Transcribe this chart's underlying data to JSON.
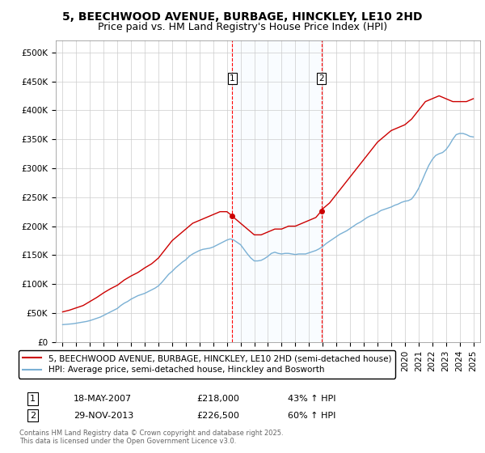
{
  "title": "5, BEECHWOOD AVENUE, BURBAGE, HINCKLEY, LE10 2HD",
  "subtitle": "Price paid vs. HM Land Registry's House Price Index (HPI)",
  "ylabel_ticks": [
    "£0",
    "£50K",
    "£100K",
    "£150K",
    "£200K",
    "£250K",
    "£300K",
    "£350K",
    "£400K",
    "£450K",
    "£500K"
  ],
  "ytick_values": [
    0,
    50000,
    100000,
    150000,
    200000,
    250000,
    300000,
    350000,
    400000,
    450000,
    500000
  ],
  "ylim": [
    0,
    520000
  ],
  "xlim_start": 1994.5,
  "xlim_end": 2025.5,
  "xticks": [
    1995,
    1996,
    1997,
    1998,
    1999,
    2000,
    2001,
    2002,
    2003,
    2004,
    2005,
    2006,
    2007,
    2008,
    2009,
    2010,
    2011,
    2012,
    2013,
    2014,
    2015,
    2016,
    2017,
    2018,
    2019,
    2020,
    2021,
    2022,
    2023,
    2024,
    2025
  ],
  "line1_color": "#cc0000",
  "line2_color": "#7ab0d4",
  "line1_label": "5, BEECHWOOD AVENUE, BURBAGE, HINCKLEY, LE10 2HD (semi-detached house)",
  "line2_label": "HPI: Average price, semi-detached house, Hinckley and Bosworth",
  "sale1_date": 2007.38,
  "sale1_price": 218000,
  "sale2_date": 2013.91,
  "sale2_price": 226500,
  "annotation1_label": "1",
  "annotation2_label": "2",
  "table_row1": [
    "1",
    "18-MAY-2007",
    "£218,000",
    "43% ↑ HPI"
  ],
  "table_row2": [
    "2",
    "29-NOV-2013",
    "£226,500",
    "60% ↑ HPI"
  ],
  "footer": "Contains HM Land Registry data © Crown copyright and database right 2025.\nThis data is licensed under the Open Government Licence v3.0.",
  "bg_color": "#ffffff",
  "grid_color": "#cccccc",
  "shade_color": "#ddeeff",
  "title_fontsize": 10,
  "subtitle_fontsize": 9,
  "tick_fontsize": 7.5,
  "hpi_data_x": [
    1995.0,
    1995.25,
    1995.5,
    1995.75,
    1996.0,
    1996.25,
    1996.5,
    1996.75,
    1997.0,
    1997.25,
    1997.5,
    1997.75,
    1998.0,
    1998.25,
    1998.5,
    1998.75,
    1999.0,
    1999.25,
    1999.5,
    1999.75,
    2000.0,
    2000.25,
    2000.5,
    2000.75,
    2001.0,
    2001.25,
    2001.5,
    2001.75,
    2002.0,
    2002.25,
    2002.5,
    2002.75,
    2003.0,
    2003.25,
    2003.5,
    2003.75,
    2004.0,
    2004.25,
    2004.5,
    2004.75,
    2005.0,
    2005.25,
    2005.5,
    2005.75,
    2006.0,
    2006.25,
    2006.5,
    2006.75,
    2007.0,
    2007.25,
    2007.5,
    2007.75,
    2008.0,
    2008.25,
    2008.5,
    2008.75,
    2009.0,
    2009.25,
    2009.5,
    2009.75,
    2010.0,
    2010.25,
    2010.5,
    2010.75,
    2011.0,
    2011.25,
    2011.5,
    2011.75,
    2012.0,
    2012.25,
    2012.5,
    2012.75,
    2013.0,
    2013.25,
    2013.5,
    2013.75,
    2014.0,
    2014.25,
    2014.5,
    2014.75,
    2015.0,
    2015.25,
    2015.5,
    2015.75,
    2016.0,
    2016.25,
    2016.5,
    2016.75,
    2017.0,
    2017.25,
    2017.5,
    2017.75,
    2018.0,
    2018.25,
    2018.5,
    2018.75,
    2019.0,
    2019.25,
    2019.5,
    2019.75,
    2020.0,
    2020.25,
    2020.5,
    2020.75,
    2021.0,
    2021.25,
    2021.5,
    2021.75,
    2022.0,
    2022.25,
    2022.5,
    2022.75,
    2023.0,
    2023.25,
    2023.5,
    2023.75,
    2024.0,
    2024.25,
    2024.5,
    2024.75,
    2025.0
  ],
  "hpi_data_y": [
    30000,
    30500,
    31000,
    31500,
    32500,
    33500,
    34500,
    35500,
    37000,
    39000,
    41000,
    43000,
    46000,
    49000,
    52000,
    55000,
    58000,
    63000,
    67000,
    70000,
    74000,
    77000,
    80000,
    82000,
    84000,
    87000,
    90000,
    93000,
    97000,
    103000,
    110000,
    117000,
    122000,
    128000,
    133000,
    138000,
    142000,
    148000,
    152000,
    155000,
    158000,
    160000,
    161000,
    162000,
    164000,
    167000,
    170000,
    173000,
    176000,
    178000,
    176000,
    172000,
    168000,
    160000,
    152000,
    145000,
    140000,
    140000,
    141000,
    144000,
    148000,
    153000,
    155000,
    153000,
    152000,
    153000,
    153000,
    152000,
    151000,
    152000,
    152000,
    152000,
    154000,
    156000,
    158000,
    161000,
    165000,
    170000,
    174000,
    178000,
    182000,
    186000,
    189000,
    192000,
    196000,
    200000,
    204000,
    207000,
    211000,
    215000,
    218000,
    220000,
    223000,
    227000,
    229000,
    231000,
    233000,
    236000,
    238000,
    241000,
    243000,
    244000,
    247000,
    255000,
    265000,
    278000,
    292000,
    305000,
    315000,
    322000,
    325000,
    327000,
    332000,
    340000,
    350000,
    358000,
    360000,
    360000,
    358000,
    355000,
    354000
  ],
  "price_line_x": [
    1995.0,
    1995.5,
    1996.0,
    1996.5,
    1997.0,
    1997.5,
    1998.0,
    1998.5,
    1999.0,
    1999.5,
    2000.0,
    2000.5,
    2001.0,
    2001.5,
    2002.0,
    2002.5,
    2003.0,
    2003.5,
    2004.0,
    2004.5,
    2005.0,
    2005.5,
    2006.0,
    2006.5,
    2007.0,
    2007.38,
    2007.5,
    2008.0,
    2008.5,
    2009.0,
    2009.5,
    2010.0,
    2010.5,
    2011.0,
    2011.5,
    2012.0,
    2012.5,
    2013.0,
    2013.5,
    2013.91,
    2014.0,
    2014.5,
    2015.0,
    2015.5,
    2016.0,
    2016.5,
    2017.0,
    2017.5,
    2018.0,
    2018.5,
    2019.0,
    2019.5,
    2020.0,
    2020.5,
    2021.0,
    2021.5,
    2022.0,
    2022.5,
    2023.0,
    2023.5,
    2024.0,
    2024.5,
    2025.0
  ],
  "price_line_y": [
    52000,
    55000,
    59000,
    63000,
    70000,
    77000,
    85000,
    92000,
    98000,
    107000,
    114000,
    120000,
    128000,
    135000,
    145000,
    160000,
    175000,
    185000,
    195000,
    205000,
    210000,
    215000,
    220000,
    225000,
    225000,
    218000,
    215000,
    205000,
    195000,
    185000,
    185000,
    190000,
    195000,
    195000,
    200000,
    200000,
    205000,
    210000,
    215000,
    226500,
    230000,
    240000,
    255000,
    270000,
    285000,
    300000,
    315000,
    330000,
    345000,
    355000,
    365000,
    370000,
    375000,
    385000,
    400000,
    415000,
    420000,
    425000,
    420000,
    415000,
    415000,
    415000,
    420000
  ]
}
